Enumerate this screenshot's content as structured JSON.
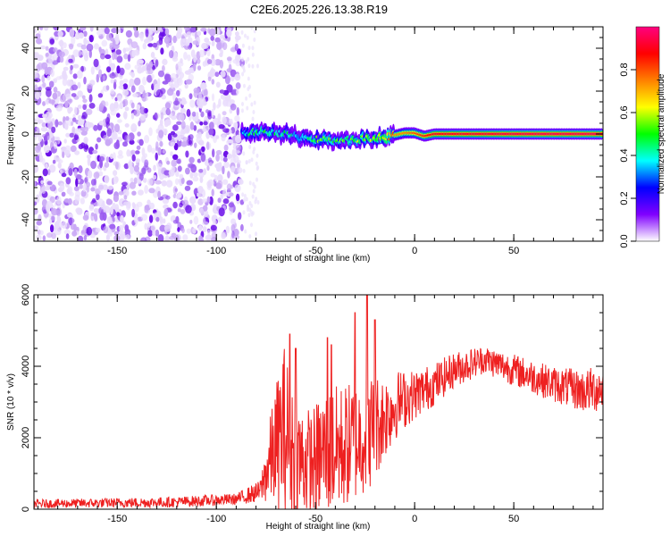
{
  "title": "C2E6.2025.226.13.38.R19",
  "chart_data": [
    {
      "type": "heatmap",
      "xlabel": "Height of straight line (km)",
      "ylabel": "Frequency (Hz)",
      "xlim": [
        -192,
        95
      ],
      "ylim": [
        -50,
        50
      ],
      "xticks": [
        -150,
        -100,
        -50,
        0,
        50
      ],
      "xtick_labels": [
        "-150",
        "-100",
        "-50",
        "0",
        "50"
      ],
      "yticks": [
        -40,
        -20,
        0,
        20,
        40
      ],
      "ytick_labels": [
        "-40",
        "-20",
        "0",
        "20",
        "40"
      ],
      "noise_region": {
        "x": [
          -192,
          -87
        ],
        "y": [
          -50,
          50
        ]
      },
      "ridge": [
        {
          "x": -87,
          "freq": 0.5,
          "amp": 0.35
        },
        {
          "x": -80,
          "freq": 1.0,
          "amp": 0.45
        },
        {
          "x": -72,
          "freq": 0.5,
          "amp": 0.42
        },
        {
          "x": -64,
          "freq": 0.0,
          "amp": 0.4
        },
        {
          "x": -56,
          "freq": -2.0,
          "amp": 0.4
        },
        {
          "x": -48,
          "freq": -2.5,
          "amp": 0.5
        },
        {
          "x": -40,
          "freq": -3.0,
          "amp": 0.48
        },
        {
          "x": -32,
          "freq": -3.0,
          "amp": 0.5
        },
        {
          "x": -24,
          "freq": -2.0,
          "amp": 0.55
        },
        {
          "x": -16,
          "freq": -1.5,
          "amp": 0.6
        },
        {
          "x": -12,
          "freq": -1.0,
          "amp": 0.72
        },
        {
          "x": -5,
          "freq": 0.5,
          "amp": 0.75
        },
        {
          "x": 0,
          "freq": 0.5,
          "amp": 0.8
        },
        {
          "x": 5,
          "freq": -1.0,
          "amp": 0.85
        },
        {
          "x": 10,
          "freq": 0.0,
          "amp": 0.9
        },
        {
          "x": 30,
          "freq": 0.0,
          "amp": 0.92
        },
        {
          "x": 60,
          "freq": 0.0,
          "amp": 0.95
        },
        {
          "x": 95,
          "freq": 0.0,
          "amp": 0.95
        }
      ],
      "colorbar": {
        "label": "Normalized spectral amplitude",
        "range": [
          0,
          1
        ],
        "ticks": [
          0.0,
          0.2,
          0.4,
          0.6,
          0.8
        ],
        "tick_labels": [
          "0.0",
          "0.2",
          "0.4",
          "0.6",
          "0.8"
        ],
        "colors": [
          "#ffffff",
          "#8000ff",
          "#0000ff",
          "#00ffff",
          "#00ff00",
          "#ffff00",
          "#ff8000",
          "#ff0000",
          "#ff0080"
        ]
      }
    },
    {
      "type": "line",
      "xlabel": "Height of straight line (km)",
      "ylabel": "SNR (10 * v/v)",
      "xlim": [
        -192,
        95
      ],
      "ylim": [
        0,
        6000
      ],
      "xticks": [
        -150,
        -100,
        -50,
        0,
        50
      ],
      "xtick_labels": [
        "-150",
        "-100",
        "-50",
        "0",
        "50"
      ],
      "yticks": [
        0,
        2000,
        4000,
        6000
      ],
      "ytick_labels": [
        "0",
        "2000",
        "4000",
        "6000"
      ],
      "color": "#ee2020",
      "envelope": [
        {
          "x": -192,
          "mean": 150,
          "spread": 120
        },
        {
          "x": -120,
          "mean": 200,
          "spread": 150
        },
        {
          "x": -90,
          "mean": 280,
          "spread": 160
        },
        {
          "x": -78,
          "mean": 500,
          "spread": 300
        },
        {
          "x": -72,
          "mean": 1500,
          "spread": 1400
        },
        {
          "x": -66,
          "mean": 2200,
          "spread": 2500
        },
        {
          "x": -58,
          "mean": 1400,
          "spread": 1600
        },
        {
          "x": -52,
          "mean": 1300,
          "spread": 1500
        },
        {
          "x": -45,
          "mean": 1600,
          "spread": 1800
        },
        {
          "x": -38,
          "mean": 1700,
          "spread": 1800
        },
        {
          "x": -30,
          "mean": 1900,
          "spread": 1700
        },
        {
          "x": -22,
          "mean": 2200,
          "spread": 1600
        },
        {
          "x": -15,
          "mean": 2600,
          "spread": 1200
        },
        {
          "x": -8,
          "mean": 3000,
          "spread": 900
        },
        {
          "x": 0,
          "mean": 3200,
          "spread": 700
        },
        {
          "x": 10,
          "mean": 3500,
          "spread": 600
        },
        {
          "x": 20,
          "mean": 3900,
          "spread": 500
        },
        {
          "x": 35,
          "mean": 4200,
          "spread": 400
        },
        {
          "x": 50,
          "mean": 3900,
          "spread": 450
        },
        {
          "x": 70,
          "mean": 3500,
          "spread": 500
        },
        {
          "x": 85,
          "mean": 3300,
          "spread": 600
        },
        {
          "x": 95,
          "mean": 3400,
          "spread": 700
        }
      ],
      "peaks": [
        {
          "x": -63,
          "y": 4900
        },
        {
          "x": -60,
          "y": 4500
        },
        {
          "x": -44,
          "y": 4800
        },
        {
          "x": -42,
          "y": 4600
        },
        {
          "x": -30,
          "y": 5500
        },
        {
          "x": -24,
          "y": 6000
        },
        {
          "x": -20,
          "y": 5300
        }
      ]
    }
  ]
}
